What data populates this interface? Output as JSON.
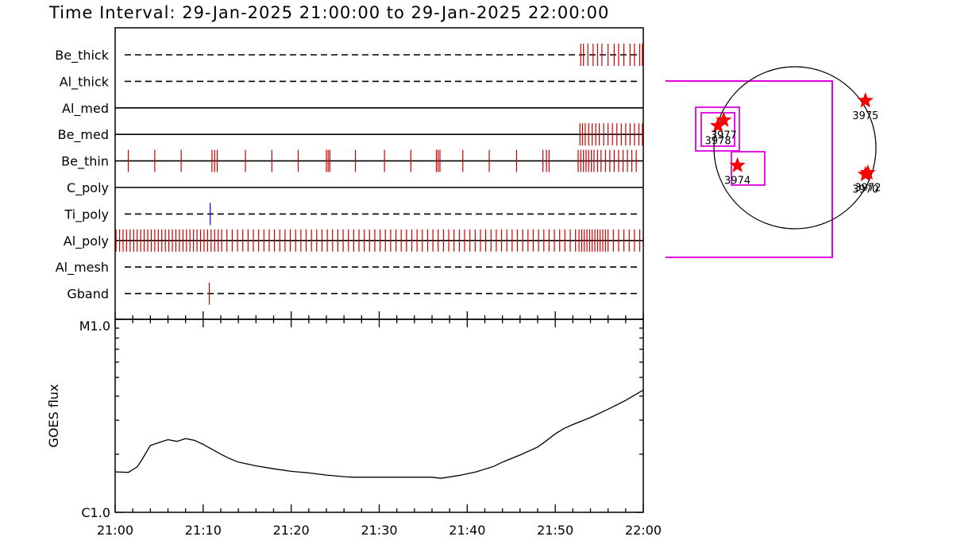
{
  "title": "Time Interval: 29-Jan-2025 21:00:00 to 29-Jan-2025 22:00:00",
  "chart_data": [
    {
      "type": "timeline",
      "channels": [
        {
          "name": "Be_thick",
          "style": "dashed",
          "event_color": "#cc0000",
          "events": [
            52.9,
            53.2,
            53.7,
            54.3,
            54.8,
            55.3,
            56.0,
            56.7,
            57.2,
            57.8,
            58.5,
            59.0,
            59.6,
            59.9
          ]
        },
        {
          "name": "Al_thick",
          "style": "dashed",
          "event_color": "#cc0000",
          "events": []
        },
        {
          "name": "Al_med",
          "style": "solid",
          "event_color": "#cc0000",
          "events": []
        },
        {
          "name": "Be_med",
          "style": "solid",
          "event_color": "#cc0000",
          "events": [
            52.8,
            53.1,
            53.4,
            53.8,
            54.2,
            54.6,
            55.0,
            55.5,
            56.0,
            56.5,
            57.0,
            57.5,
            58.0,
            58.5,
            59.0,
            59.5,
            59.9
          ]
        },
        {
          "name": "Be_thin",
          "style": "solid",
          "event_color": "#cc0000",
          "events": [
            1.5,
            4.5,
            7.5,
            11.0,
            11.3,
            11.6,
            14.8,
            17.8,
            20.8,
            24.0,
            24.2,
            24.4,
            27.3,
            30.6,
            33.6,
            36.5,
            36.7,
            36.9,
            39.5,
            42.5,
            45.6,
            48.6,
            49.0,
            49.3,
            52.6,
            52.9,
            53.2,
            53.5,
            53.8,
            54.1,
            54.4,
            54.8,
            55.2,
            55.7,
            56.2,
            56.7,
            57.2,
            57.7,
            58.2,
            58.7,
            59.2
          ]
        },
        {
          "name": "C_poly",
          "style": "solid",
          "event_color": "#cc0000",
          "events": []
        },
        {
          "name": "Ti_poly",
          "style": "dashed",
          "event_color": "#0000cc",
          "events": [
            10.8
          ]
        },
        {
          "name": "Al_poly",
          "style": "solid",
          "event_color": "#cc0000",
          "events": [
            0.1,
            0.5,
            0.9,
            1.3,
            1.7,
            2.1,
            2.5,
            2.9,
            3.3,
            3.7,
            4.1,
            4.5,
            4.9,
            5.3,
            5.7,
            6.1,
            6.5,
            6.9,
            7.3,
            7.7,
            8.1,
            8.5,
            8.9,
            9.3,
            9.7,
            10.1,
            10.5,
            10.9,
            11.3,
            11.7,
            12.1,
            12.7,
            13.3,
            13.9,
            14.5,
            15.1,
            15.7,
            16.3,
            16.9,
            17.5,
            18.1,
            18.7,
            19.3,
            19.9,
            20.5,
            21.1,
            21.7,
            22.3,
            22.9,
            23.5,
            24.1,
            24.7,
            25.3,
            25.9,
            26.5,
            27.1,
            27.7,
            28.3,
            28.9,
            29.5,
            30.1,
            30.7,
            31.3,
            31.9,
            32.5,
            33.1,
            33.7,
            34.3,
            34.9,
            35.5,
            36.1,
            36.7,
            37.3,
            37.9,
            38.5,
            39.1,
            39.7,
            40.3,
            40.9,
            41.5,
            42.1,
            42.7,
            43.3,
            43.9,
            44.5,
            45.1,
            45.7,
            46.3,
            46.9,
            47.5,
            48.1,
            48.7,
            49.3,
            49.9,
            50.5,
            51.1,
            51.7,
            52.3,
            52.7,
            53.0,
            53.3,
            53.6,
            53.9,
            54.2,
            54.5,
            54.8,
            55.1,
            55.4,
            55.7,
            56.0,
            56.6,
            57.2,
            57.8,
            58.4,
            59.0,
            59.6
          ]
        },
        {
          "name": "Al_mesh",
          "style": "dashed",
          "event_color": "#cc0000",
          "events": []
        },
        {
          "name": "Gband",
          "style": "dashed",
          "event_color": "#cc0000",
          "events": [
            10.7
          ]
        }
      ]
    },
    {
      "type": "line",
      "ylabel": "GOES flux",
      "yscale": "log",
      "ylim": [
        1e-06,
        1e-05
      ],
      "ytick_labels": [
        "C1.0",
        "M1.0"
      ],
      "xlim": [
        0,
        60
      ],
      "xticks": [
        "21:00",
        "21:10",
        "21:20",
        "21:30",
        "21:40",
        "21:50",
        "22:00"
      ],
      "series": [
        {
          "x": [
            0,
            1.5,
            2.5,
            3.0,
            4.0,
            5.0,
            6.0,
            7.0,
            8.0,
            9.0,
            10.0,
            12.0,
            13.0,
            14.0,
            16.0,
            18.0,
            20.0,
            22.0,
            24.0,
            26.0,
            27.0,
            30.0,
            33.0,
            36.0,
            37.0,
            39.0,
            41.0,
            43.0,
            44.0,
            46.0,
            48.0,
            49.0,
            50.0,
            51.0,
            52.0,
            54.0,
            56.0,
            58.0,
            60.0
          ],
          "y": [
            1.62e-06,
            1.61e-06,
            1.72e-06,
            1.86e-06,
            2.22e-06,
            2.3e-06,
            2.38e-06,
            2.33e-06,
            2.41e-06,
            2.36e-06,
            2.25e-06,
            2e-06,
            1.9e-06,
            1.82e-06,
            1.74e-06,
            1.68e-06,
            1.63e-06,
            1.6e-06,
            1.56e-06,
            1.53e-06,
            1.52e-06,
            1.52e-06,
            1.52e-06,
            1.52e-06,
            1.5e-06,
            1.55e-06,
            1.62e-06,
            1.73e-06,
            1.82e-06,
            1.98e-06,
            2.18e-06,
            2.35e-06,
            2.55e-06,
            2.72e-06,
            2.85e-06,
            3.1e-06,
            3.42e-06,
            3.8e-06,
            4.3e-06
          ]
        }
      ]
    },
    {
      "type": "scatter",
      "disk": true,
      "points": [
        {
          "label": "3975",
          "x": 0.87,
          "y": 0.58
        },
        {
          "label": "3974",
          "x": -0.71,
          "y": -0.22
        },
        {
          "label": "3977",
          "x": -0.88,
          "y": 0.34
        },
        {
          "label": "3978",
          "x": -0.95,
          "y": 0.27
        },
        {
          "label": "3970",
          "x": 0.87,
          "y": -0.33
        },
        {
          "label": "3972",
          "x": 0.9,
          "y": -0.31
        }
      ]
    }
  ]
}
